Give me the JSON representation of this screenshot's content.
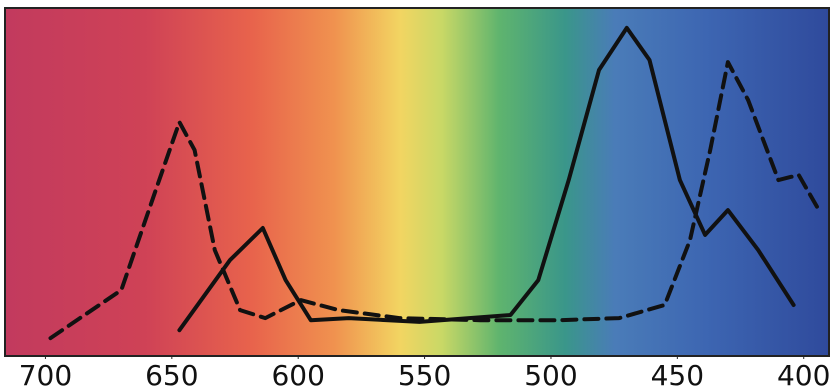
{
  "chart_data": {
    "type": "line",
    "xlim": [
      716,
      390
    ],
    "ylim": [
      0,
      100
    ],
    "xticks": [
      700,
      650,
      600,
      550,
      500,
      450,
      400
    ],
    "series": [
      {
        "color": "#111111",
        "line_style": "dashed",
        "x": [
          698,
          670,
          655,
          647,
          641,
          633,
          623,
          613,
          599,
          584,
          560,
          528,
          497,
          473,
          455,
          445,
          437,
          430,
          422,
          410,
          402,
          394
        ],
        "values": [
          4.9,
          18.8,
          50.7,
          67.5,
          59.4,
          30.4,
          13,
          10.7,
          15.9,
          13,
          10.7,
          10.1,
          10.1,
          10.7,
          14.5,
          33.3,
          59.4,
          84.9,
          73.9,
          50.7,
          52.2,
          42
        ]
      },
      {
        "color": "#111111",
        "line_style": "solid",
        "x": [
          647,
          627,
          614,
          605,
          595,
          580,
          552,
          516,
          505,
          493,
          481,
          470,
          461,
          449,
          439,
          430,
          418,
          404
        ],
        "values": [
          7.2,
          27.5,
          36.8,
          21.7,
          10.1,
          10.7,
          9.6,
          11.6,
          21.7,
          50.7,
          82.6,
          94.8,
          85.5,
          50.7,
          34.8,
          42,
          30.4,
          14.5
        ]
      }
    ]
  }
}
